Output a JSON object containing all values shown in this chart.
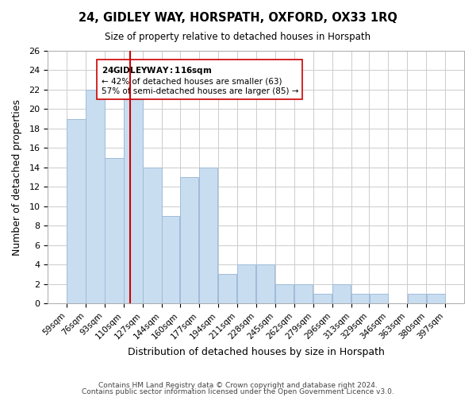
{
  "title": "24, GIDLEY WAY, HORSPATH, OXFORD, OX33 1RQ",
  "subtitle": "Size of property relative to detached houses in Horspath",
  "xlabel": "Distribution of detached houses by size in Horspath",
  "ylabel": "Number of detached properties",
  "bar_color": "#c8ddf0",
  "bar_edgecolor": "#a0bcd8",
  "vline_x": 116,
  "vline_color": "#cc0000",
  "annotation_title": "24 GIDLEY WAY: 116sqm",
  "annotation_line1": "← 42% of detached houses are smaller (63)",
  "annotation_line2": "57% of semi-detached houses are larger (85) →",
  "bin_edges": [
    59,
    76,
    93,
    110,
    127,
    144,
    160,
    177,
    194,
    211,
    228,
    245,
    262,
    279,
    296,
    313,
    329,
    346,
    363,
    380,
    397
  ],
  "bin_labels": [
    "59sqm",
    "76sqm",
    "93sqm",
    "110sqm",
    "127sqm",
    "144sqm",
    "160sqm",
    "177sqm",
    "194sqm",
    "211sqm",
    "228sqm",
    "245sqm",
    "262sqm",
    "279sqm",
    "296sqm",
    "313sqm",
    "329sqm",
    "346sqm",
    "363sqm",
    "380sqm",
    "397sqm"
  ],
  "counts": [
    19,
    22,
    15,
    21,
    14,
    9,
    13,
    14,
    3,
    4,
    4,
    2,
    2,
    1,
    2,
    1,
    1,
    0,
    1,
    1
  ],
  "ylim": [
    0,
    26
  ],
  "yticks": [
    0,
    2,
    4,
    6,
    8,
    10,
    12,
    14,
    16,
    18,
    20,
    22,
    24,
    26
  ],
  "footer1": "Contains HM Land Registry data © Crown copyright and database right 2024.",
  "footer2": "Contains public sector information licensed under the Open Government Licence v3.0."
}
